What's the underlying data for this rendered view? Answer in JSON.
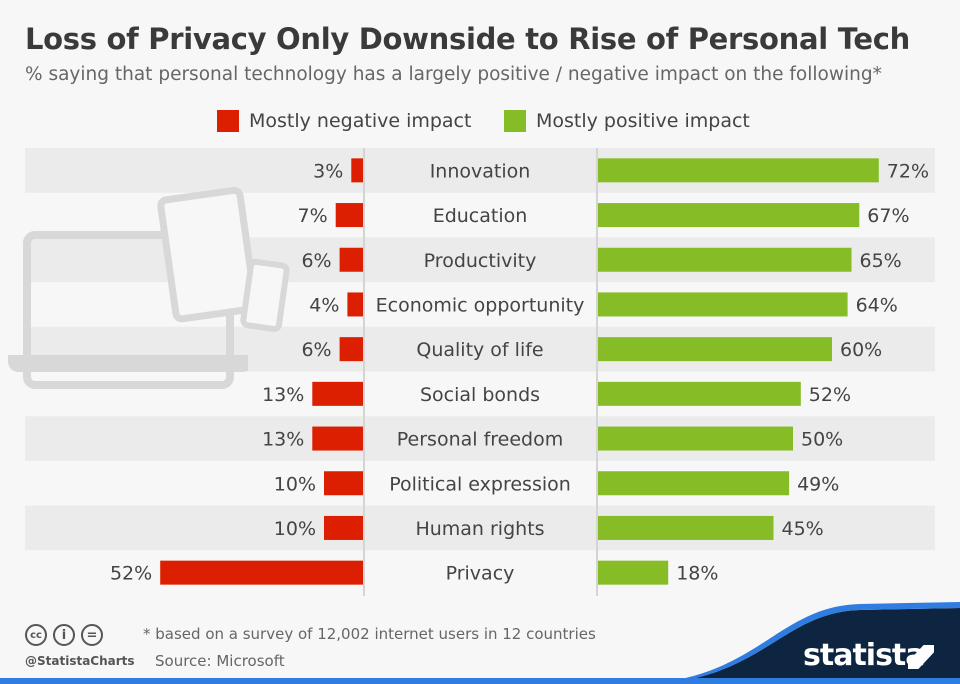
{
  "title": "Loss of Privacy Only Downside to Rise of Personal Tech",
  "subtitle": "% saying that personal technology has a largely positive / negative impact on the following*",
  "colors": {
    "negative": "#dc1f00",
    "positive": "#86bc25",
    "row_shade": "#ebebeb",
    "background": "#f7f7f7"
  },
  "chart_data": {
    "type": "bar",
    "orientation": "horizontal diverging",
    "categories": [
      "Innovation",
      "Education",
      "Productivity",
      "Economic opportunity",
      "Quality of life",
      "Social bonds",
      "Personal freedom",
      "Political expression",
      "Human rights",
      "Privacy"
    ],
    "series": [
      {
        "name": "Mostly negative impact",
        "values": [
          3,
          7,
          6,
          4,
          6,
          13,
          13,
          10,
          10,
          52
        ]
      },
      {
        "name": "Mostly positive impact",
        "values": [
          72,
          67,
          65,
          64,
          60,
          52,
          50,
          49,
          45,
          18
        ]
      }
    ],
    "unit": "%",
    "legend": "top"
  },
  "footer": {
    "note": "* based on a survey of 12,002 internet users in 12 countries",
    "source": "Source: Microsoft",
    "handle": "@StatistaCharts",
    "brand": "statista",
    "license_icons": [
      "cc-icon",
      "by-icon",
      "nd-icon"
    ]
  }
}
